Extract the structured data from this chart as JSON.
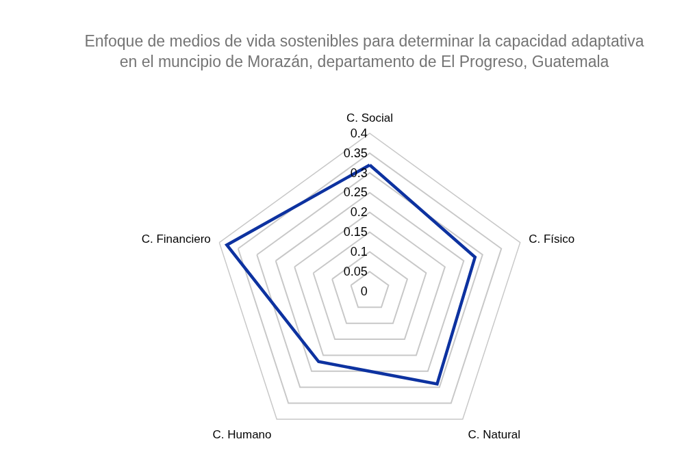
{
  "chart_data": {
    "type": "radar",
    "title": "Enfoque de medios de vida sostenibles para determinar la capacidad adaptativa\nen el muncipio de Morazán, departamento de El Progreso, Guatemala",
    "categories": [
      "C. Social",
      "C. Físico",
      "C. Natural",
      "C. Humano",
      "C. Financiero"
    ],
    "series": [
      {
        "color": "#0d32a0",
        "values": [
          0.32,
          0.28,
          0.29,
          0.22,
          0.38
        ]
      }
    ],
    "ylim": [
      0,
      0.4
    ],
    "yticks": [
      0,
      0.05,
      0.1,
      0.15,
      0.2,
      0.25,
      0.3,
      0.35,
      0.4
    ],
    "grid": true,
    "marker": "none",
    "line_style": "solid"
  }
}
